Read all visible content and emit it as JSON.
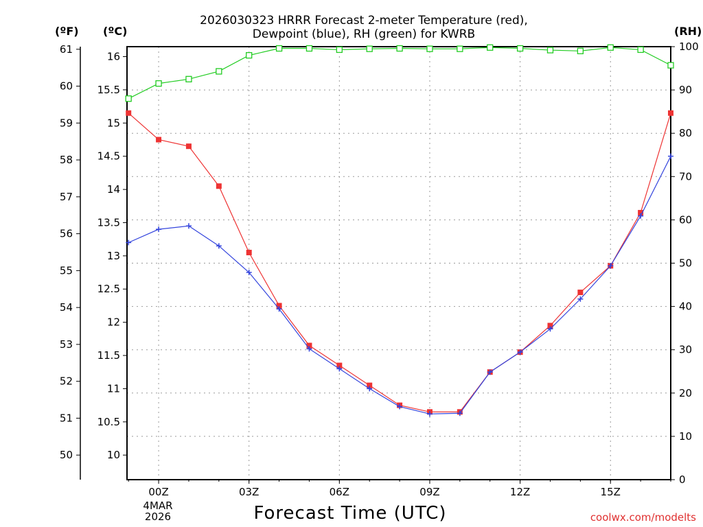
{
  "chart_data": {
    "type": "line",
    "title_line1": "2026030323 HRRR Forecast 2-meter Temperature (red),",
    "title_line2": "Dewpoint (blue), RH (green) for KWRB",
    "xlabel": "Forecast Time (UTC)",
    "unit_f": "(ºF)",
    "unit_c": "(ºC)",
    "unit_rh": "(RH)",
    "date_line1": "4MAR",
    "date_line2": "2026",
    "watermark": "coolwx.com/modelts",
    "x_hours": [
      -1,
      0,
      1,
      2,
      3,
      4,
      5,
      6,
      7,
      8,
      9,
      10,
      11,
      12,
      13,
      14,
      15,
      16,
      17
    ],
    "x_ticks": [
      {
        "hour": 0,
        "label": "00Z"
      },
      {
        "hour": 3,
        "label": "03Z"
      },
      {
        "hour": 6,
        "label": "06Z"
      },
      {
        "hour": 9,
        "label": "09Z"
      },
      {
        "hour": 12,
        "label": "12Z"
      },
      {
        "hour": 15,
        "label": "15Z"
      }
    ],
    "xlim": [
      -1.05,
      17
    ],
    "c_range": [
      9.63,
      16.15
    ],
    "c_ticks": [
      "10",
      "10.5",
      "11",
      "11.5",
      "12",
      "12.5",
      "13",
      "13.5",
      "14",
      "14.5",
      "15",
      "15.5",
      "16"
    ],
    "f_ticks": [
      "50",
      "51",
      "52",
      "53",
      "54",
      "55",
      "56",
      "57",
      "58",
      "59",
      "60",
      "61"
    ],
    "rh_range": [
      0,
      100
    ],
    "rh_ticks": [
      "0",
      "10",
      "20",
      "30",
      "40",
      "50",
      "60",
      "70",
      "80",
      "90",
      "100"
    ],
    "series": [
      {
        "name": "Temperature",
        "color": "#ee3333",
        "marker": "filled-square",
        "values": [
          15.15,
          14.75,
          14.65,
          14.05,
          13.05,
          12.25,
          11.65,
          11.35,
          11.05,
          10.75,
          10.65,
          10.65,
          11.25,
          11.55,
          11.95,
          12.45,
          12.85,
          13.65,
          15.15
        ]
      },
      {
        "name": "Dewpoint",
        "color": "#3344dd",
        "marker": "plus",
        "values": [
          13.2,
          13.4,
          13.45,
          13.15,
          12.75,
          12.2,
          11.6,
          11.3,
          11.0,
          10.73,
          10.62,
          10.63,
          11.25,
          11.55,
          11.9,
          12.35,
          12.85,
          13.6,
          14.5
        ]
      },
      {
        "name": "RH",
        "color": "#22cc22",
        "marker": "open-square",
        "values": [
          88,
          91.5,
          92.5,
          94.3,
          98,
          99.6,
          99.6,
          99.3,
          99.5,
          99.6,
          99.5,
          99.5,
          99.8,
          99.6,
          99.2,
          99.0,
          99.8,
          99.3,
          95.7
        ]
      }
    ]
  }
}
